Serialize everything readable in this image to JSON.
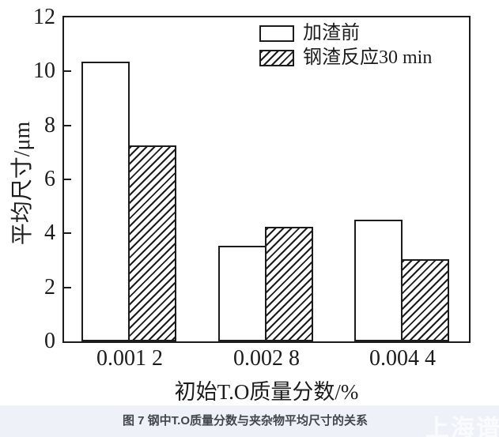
{
  "chart_data": {
    "type": "bar",
    "categories": [
      "0.001 2",
      "0.002 8",
      "0.004 4"
    ],
    "series": [
      {
        "name": "加渣前",
        "fill": "white",
        "values": [
          10.35,
          3.55,
          4.5
        ]
      },
      {
        "name": "钢渣反应30 min",
        "fill": "hatched",
        "values": [
          7.25,
          4.25,
          3.05
        ]
      }
    ],
    "xlabel": "初始T.O质量分数/%",
    "ylabel": "平均尺寸/μm",
    "ylim": [
      0,
      12
    ],
    "yticks": [
      0,
      2,
      4,
      6,
      8,
      10,
      12
    ],
    "legend_position": "top-right-inside",
    "grid": false,
    "axis_color": "#1c1c1c",
    "bar_fill_color": "#ffffff"
  },
  "caption": {
    "text": "图 7 钢中T.O质量分数与夹杂物平均尺寸的关系",
    "color": "#42474d",
    "strip_color": "#eef1f8"
  },
  "watermark": {
    "text": "上海谱",
    "color": "#fafcff"
  }
}
